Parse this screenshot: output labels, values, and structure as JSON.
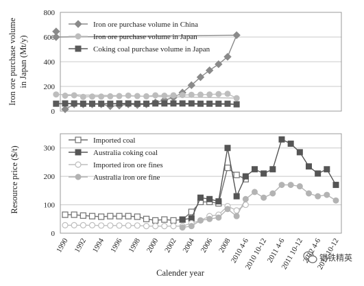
{
  "chart_data": [
    {
      "type": "line",
      "ylabel": [
        "Iron ore purchase volume",
        "in Japan (Mt/y)"
      ],
      "ylim": [
        0,
        800
      ],
      "yticks": [
        0,
        200,
        400,
        600,
        800
      ],
      "grid": "horizontal",
      "legend_position": "top-left",
      "x_shared_with_lower_panel": true,
      "series": [
        {
          "name": "Iron ore purchase volume in China",
          "marker": "diamond",
          "color": "#8a8a8a",
          "x": [
            "1990",
            "1991",
            "1992",
            "1993",
            "1994",
            "1995",
            "1996",
            "1997",
            "1998",
            "1999",
            "2000",
            "2001",
            "2002",
            "2003",
            "2004",
            "2005",
            "2006",
            "2007",
            "2008",
            "2009",
            "2010",
            "2011"
          ],
          "values": [
            15,
            55,
            55,
            55,
            55,
            40,
            45,
            55,
            50,
            55,
            70,
            90,
            110,
            150,
            210,
            275,
            330,
            380,
            440,
            615,
            600,
            645
          ]
        },
        {
          "name": "Iron ore purchase volume in Japan",
          "marker": "circle",
          "color": "#bdbdbd",
          "x": [
            "1990",
            "1991",
            "1992",
            "1993",
            "1994",
            "1995",
            "1996",
            "1997",
            "1998",
            "1999",
            "2000",
            "2001",
            "2002",
            "2003",
            "2004",
            "2005",
            "2006",
            "2007",
            "2008",
            "2009",
            "2010"
          ],
          "values": [
            125,
            128,
            115,
            118,
            118,
            120,
            122,
            126,
            122,
            120,
            128,
            125,
            128,
            130,
            132,
            133,
            135,
            138,
            140,
            105,
            135
          ]
        },
        {
          "name": "Coking coal purchase volume in Japan",
          "marker": "square",
          "color": "#5a5a5a",
          "x": [
            "1990",
            "1991",
            "1992",
            "1993",
            "1994",
            "1995",
            "1996",
            "1997",
            "1998",
            "1999",
            "2000",
            "2001",
            "2002",
            "2003",
            "2004",
            "2005",
            "2006",
            "2007",
            "2008",
            "2009",
            "2010"
          ],
          "values": [
            62,
            62,
            60,
            60,
            60,
            60,
            62,
            62,
            60,
            60,
            62,
            62,
            62,
            62,
            62,
            60,
            60,
            60,
            60,
            55,
            60
          ]
        }
      ]
    },
    {
      "type": "line",
      "ylabel": "Resource price ($/t)",
      "xlabel": "Calender year",
      "ylim": [
        0,
        350
      ],
      "yticks": [
        0,
        100,
        200,
        300
      ],
      "grid": "horizontal",
      "legend_position": "top-left",
      "categories": [
        "1990",
        "1991",
        "1992",
        "1993",
        "1994",
        "1995",
        "1996",
        "1997",
        "1998",
        "1999",
        "2000",
        "2001",
        "2002",
        "2003",
        "2004",
        "2005",
        "2006",
        "2007",
        "2008",
        "2009",
        "2010 4-6",
        "2010 7-9",
        "2010 10-12",
        "2011 1-3",
        "2011 4-6",
        "2011 7-9",
        "2011 10-12",
        "2012 1-3",
        "2012 4-6",
        "2012 7-9",
        "2012 10-12"
      ],
      "tick_labels": [
        "1990",
        "1992",
        "1994",
        "1996",
        "1998",
        "2000",
        "2002",
        "2004",
        "2006",
        "2008",
        "2010 4-6",
        "2010 10-12",
        "2011 4-6",
        "2011 10-12",
        "2012 4-6",
        "2012 10-12"
      ],
      "series": [
        {
          "name": "Imported coal",
          "marker": "open-square",
          "color": "#6e6e6e",
          "x": [
            "1990",
            "1991",
            "1992",
            "1993",
            "1994",
            "1995",
            "1996",
            "1997",
            "1998",
            "1999",
            "2000",
            "2001",
            "2002",
            "2003",
            "2004",
            "2005",
            "2006",
            "2007",
            "2008",
            "2009",
            "2010 4-6"
          ],
          "values": [
            65,
            65,
            62,
            60,
            58,
            60,
            60,
            60,
            58,
            50,
            45,
            48,
            45,
            48,
            75,
            110,
            110,
            105,
            230,
            205,
            190
          ]
        },
        {
          "name": "Australia coking coal",
          "marker": "square",
          "color": "#555555",
          "x": [
            "2003",
            "2004",
            "2005",
            "2006",
            "2007",
            "2008",
            "2009",
            "2010 4-6",
            "2010 7-9",
            "2010 10-12",
            "2011 1-3",
            "2011 4-6",
            "2011 7-9",
            "2011 10-12",
            "2012 1-3",
            "2012 4-6",
            "2012 7-9",
            "2012 10-12"
          ],
          "values": [
            48,
            52,
            125,
            120,
            112,
            300,
            130,
            200,
            225,
            210,
            225,
            330,
            315,
            285,
            235,
            210,
            225,
            170
          ]
        },
        {
          "name": "Imported iron ore fines",
          "marker": "open-circle",
          "color": "#bdbdbd",
          "x": [
            "1990",
            "1991",
            "1992",
            "1993",
            "1994",
            "1995",
            "1996",
            "1997",
            "1998",
            "1999",
            "2000",
            "2001",
            "2002",
            "2003",
            "2004",
            "2005",
            "2006",
            "2007",
            "2008",
            "2009",
            "2010 4-6"
          ],
          "values": [
            28,
            28,
            28,
            28,
            27,
            27,
            27,
            27,
            27,
            25,
            25,
            25,
            25,
            25,
            35,
            45,
            60,
            65,
            95,
            80,
            100
          ]
        },
        {
          "name": "Australia iron ore fine",
          "marker": "circle",
          "color": "#b3b3b3",
          "x": [
            "2003",
            "2004",
            "2005",
            "2006",
            "2007",
            "2008",
            "2009",
            "2010 4-6",
            "2010 7-9",
            "2010 10-12",
            "2011 1-3",
            "2011 4-6",
            "2011 7-9",
            "2011 10-12",
            "2012 1-3",
            "2012 4-6",
            "2012 7-9",
            "2012 10-12"
          ],
          "values": [
            20,
            25,
            45,
            50,
            55,
            85,
            60,
            120,
            145,
            125,
            140,
            170,
            170,
            165,
            140,
            130,
            135,
            115
          ]
        }
      ]
    }
  ],
  "watermark": {
    "text": "钢铁精英",
    "icon": "wechat-logo"
  }
}
